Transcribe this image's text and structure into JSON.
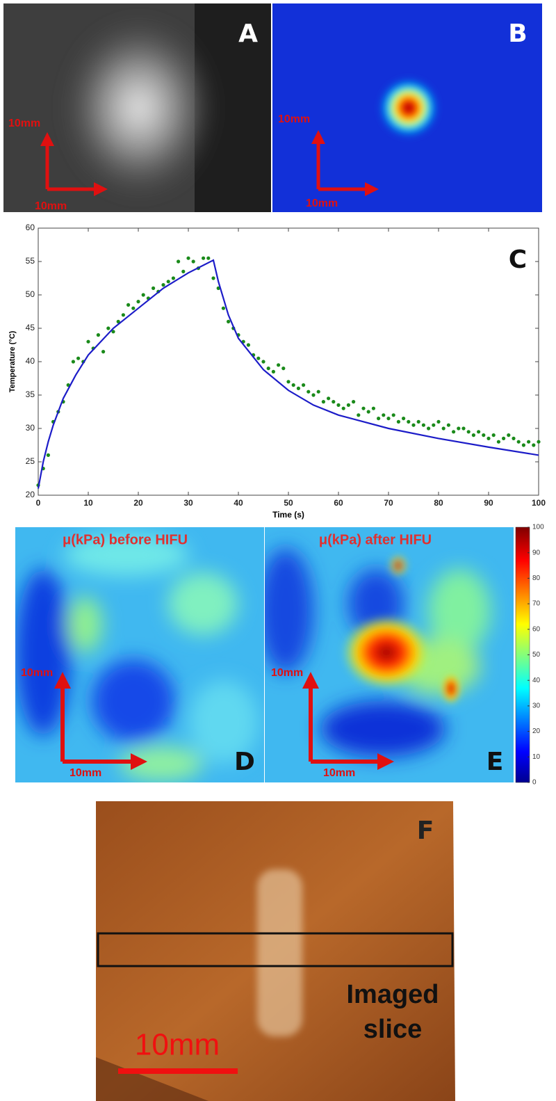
{
  "chart_data": {
    "type": "line",
    "xlabel": "Time (s)",
    "ylabel": "Temperature (°C)",
    "xlim": [
      0,
      100
    ],
    "ylim": [
      20,
      60
    ],
    "xticks": [
      0,
      10,
      20,
      30,
      40,
      50,
      60,
      70,
      80,
      90,
      100
    ],
    "yticks": [
      20,
      25,
      30,
      35,
      40,
      45,
      50,
      55,
      60
    ],
    "series": [
      {
        "type": "scatter",
        "color": "#1a8a1a",
        "x": [
          0,
          1,
          2,
          3,
          4,
          5,
          6,
          7,
          8,
          9,
          10,
          11,
          12,
          13,
          14,
          15,
          16,
          17,
          18,
          19,
          20,
          21,
          22,
          23,
          24,
          25,
          26,
          27,
          28,
          29,
          30,
          31,
          32,
          33,
          34,
          35,
          36,
          37,
          38,
          39,
          40,
          41,
          42,
          43,
          44,
          45,
          46,
          47,
          48,
          49,
          50,
          51,
          52,
          53,
          54,
          55,
          56,
          57,
          58,
          59,
          60,
          61,
          62,
          63,
          64,
          65,
          66,
          67,
          68,
          69,
          70,
          71,
          72,
          73,
          74,
          75,
          76,
          77,
          78,
          79,
          80,
          81,
          82,
          83,
          84,
          85,
          86,
          87,
          88,
          89,
          90,
          91,
          92,
          93,
          94,
          95,
          96,
          97,
          98,
          99,
          100
        ],
        "values": [
          21.5,
          24,
          26,
          31,
          32.5,
          34,
          36.5,
          40,
          40.5,
          40,
          43,
          42,
          44,
          41.5,
          45,
          44.5,
          46,
          47,
          48.5,
          48,
          49,
          50,
          49.5,
          51,
          50.5,
          51.5,
          52,
          52.5,
          55,
          53.5,
          55.5,
          55,
          54,
          55.5,
          55.5,
          52.5,
          51,
          48,
          46,
          45,
          44,
          43,
          42.5,
          41,
          40.5,
          40,
          39,
          38.5,
          39.5,
          39,
          37,
          36.5,
          36,
          36.5,
          35.5,
          35,
          35.5,
          34,
          34.5,
          34,
          33.5,
          33,
          33.5,
          34,
          32,
          33,
          32.5,
          33,
          31.5,
          32,
          31.5,
          32,
          31,
          31.5,
          31,
          30.5,
          31,
          30.5,
          30,
          30.5,
          31,
          30,
          30.5,
          29.5,
          30,
          30,
          29.5,
          29,
          29.5,
          29,
          28.5,
          29,
          28,
          28.5,
          29,
          28.5,
          28,
          27.5,
          28,
          27.5,
          28
        ]
      },
      {
        "type": "line",
        "color": "#1c1cc8",
        "x": [
          0,
          1,
          2,
          3,
          5,
          7.5,
          10,
          15,
          20,
          25,
          30,
          35,
          36,
          38,
          40,
          45,
          50,
          55,
          60,
          70,
          80,
          90,
          100
        ],
        "values": [
          21,
          25,
          28,
          30.5,
          34.5,
          38,
          41,
          45,
          48,
          51,
          53.3,
          55.2,
          52,
          47,
          43.5,
          38.8,
          35.7,
          33.5,
          32,
          30,
          28.5,
          27.2,
          26
        ]
      }
    ]
  },
  "panels": {
    "a": {
      "label": "A",
      "scale_x": "10mm",
      "scale_y": "10mm"
    },
    "b": {
      "label": "B",
      "scale_x": "10mm",
      "scale_y": "10mm"
    },
    "c": {
      "label": "C"
    },
    "d": {
      "label": "D",
      "title": "μ(kPa) before HIFU",
      "scale_x": "10mm",
      "scale_y": "10mm"
    },
    "e": {
      "label": "E",
      "title": "μ(kPa) after HIFU",
      "scale_x": "10mm",
      "scale_y": "10mm"
    },
    "f": {
      "label": "F",
      "annotation": [
        "Imaged",
        "slice"
      ],
      "scale": "10mm"
    }
  },
  "colorbar": {
    "lim": [
      0,
      100
    ],
    "ticks": [
      0,
      10,
      20,
      30,
      40,
      50,
      60,
      70,
      80,
      90,
      100
    ]
  }
}
